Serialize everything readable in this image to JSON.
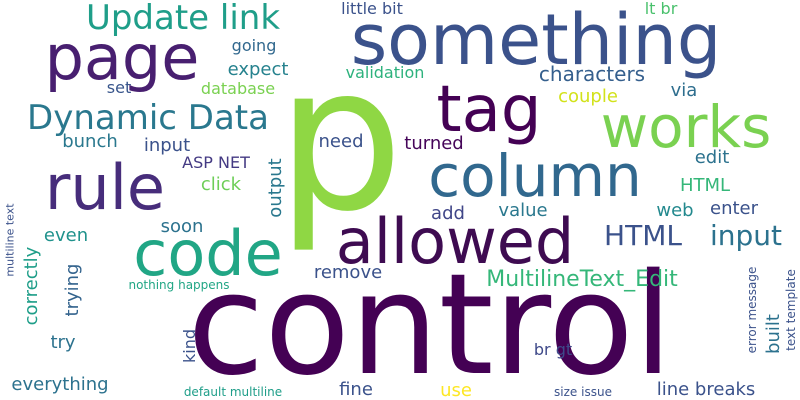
{
  "words": [
    {
      "id": "control",
      "text": "control",
      "color": "#440154"
    },
    {
      "id": "p",
      "text": "p",
      "color": "#8fd744"
    },
    {
      "id": "something",
      "text": "something",
      "color": "#3b528b"
    },
    {
      "id": "page",
      "text": "page",
      "color": "#481f70"
    },
    {
      "id": "allowed",
      "text": "allowed",
      "color": "#3e0b51"
    },
    {
      "id": "code",
      "text": "code",
      "color": "#21a685"
    },
    {
      "id": "rule",
      "text": "rule",
      "color": "#472d7b"
    },
    {
      "id": "column",
      "text": "column",
      "color": "#31688e"
    },
    {
      "id": "works",
      "text": "works",
      "color": "#7ad151"
    },
    {
      "id": "tag",
      "text": "tag",
      "color": "#440154"
    },
    {
      "id": "dynamic-data",
      "text": "Dynamic Data",
      "color": "#2a788e"
    },
    {
      "id": "update-link",
      "text": "Update link",
      "color": "#1f9e89"
    },
    {
      "id": "input-large",
      "text": "input",
      "color": "#2c728e"
    },
    {
      "id": "html-large",
      "text": "HTML",
      "color": "#3b528b"
    },
    {
      "id": "multilinetext-edit",
      "text": "MultilineText_Edit",
      "color": "#35b779"
    },
    {
      "id": "characters",
      "text": "characters",
      "color": "#355f8d"
    },
    {
      "id": "little-bit",
      "text": "little bit",
      "color": "#3b528b"
    },
    {
      "id": "lt-br",
      "text": "lt br",
      "color": "#4ac16d"
    },
    {
      "id": "going",
      "text": "going",
      "color": "#31688e"
    },
    {
      "id": "expect",
      "text": "expect",
      "color": "#26828e"
    },
    {
      "id": "validation",
      "text": "validation",
      "color": "#2db27d"
    },
    {
      "id": "set",
      "text": "set",
      "color": "#39568c"
    },
    {
      "id": "database",
      "text": "database",
      "color": "#7ad151"
    },
    {
      "id": "couple",
      "text": "couple",
      "color": "#d2e21b"
    },
    {
      "id": "via",
      "text": "via",
      "color": "#2e6e8e"
    },
    {
      "id": "bunch",
      "text": "bunch",
      "color": "#2a788e"
    },
    {
      "id": "input-small",
      "text": "input",
      "color": "#3b528b"
    },
    {
      "id": "asp-net",
      "text": "ASP NET",
      "color": "#443a83"
    },
    {
      "id": "click",
      "text": "click",
      "color": "#6ece58"
    },
    {
      "id": "need",
      "text": "need",
      "color": "#3b528b"
    },
    {
      "id": "turned",
      "text": "turned",
      "color": "#450559"
    },
    {
      "id": "edit",
      "text": "edit",
      "color": "#2c728e"
    },
    {
      "id": "html-small",
      "text": "HTML",
      "color": "#35b779"
    },
    {
      "id": "output",
      "text": "output",
      "color": "#2a788e"
    },
    {
      "id": "add",
      "text": "add",
      "color": "#404688"
    },
    {
      "id": "value",
      "text": "value",
      "color": "#2a788e"
    },
    {
      "id": "web",
      "text": "web",
      "color": "#23898e"
    },
    {
      "id": "enter",
      "text": "enter",
      "color": "#3b528b"
    },
    {
      "id": "soon",
      "text": "soon",
      "color": "#2c728e"
    },
    {
      "id": "even",
      "text": "even",
      "color": "#20928c"
    },
    {
      "id": "correctly",
      "text": "correctly",
      "color": "#1f9e89"
    },
    {
      "id": "trying",
      "text": "trying",
      "color": "#33638d"
    },
    {
      "id": "remove",
      "text": "remove",
      "color": "#3b528b"
    },
    {
      "id": "multiline-text",
      "text": "multiline text",
      "color": "#3b528b"
    },
    {
      "id": "nothing-happens",
      "text": "nothing happens",
      "color": "#21a685"
    },
    {
      "id": "try",
      "text": "try",
      "color": "#2c728e"
    },
    {
      "id": "kind",
      "text": "kind",
      "color": "#3b528b"
    },
    {
      "id": "built",
      "text": "built",
      "color": "#2c728e"
    },
    {
      "id": "error-message",
      "text": "error message",
      "color": "#3b528b"
    },
    {
      "id": "text-template",
      "text": "text template",
      "color": "#3b528b"
    },
    {
      "id": "br-gt",
      "text": "br gt",
      "color": "#3e4989"
    },
    {
      "id": "everything",
      "text": "everything",
      "color": "#2c728e"
    },
    {
      "id": "fine",
      "text": "fine",
      "color": "#3b528b"
    },
    {
      "id": "use",
      "text": "use",
      "color": "#fde725"
    },
    {
      "id": "line-breaks",
      "text": "line breaks",
      "color": "#3b528b"
    },
    {
      "id": "default-multiline",
      "text": "default multiline",
      "color": "#1f9e89"
    },
    {
      "id": "size-issue",
      "text": "size issue",
      "color": "#3b528b"
    }
  ]
}
